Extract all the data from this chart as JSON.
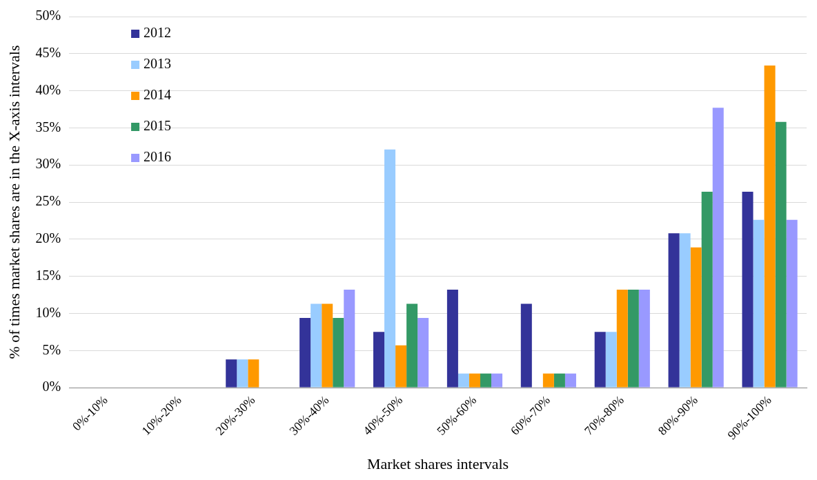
{
  "chart_data": {
    "type": "bar",
    "xlabel": "Market shares intervals",
    "ylabel": "% of times market shares are in the X-axis intervals",
    "categories": [
      "0%-10%",
      "10%-20%",
      "20%-30%",
      "30%-40%",
      "40%-50%",
      "50%-60%",
      "60%-70%",
      "70%-80%",
      "80%-90%",
      "90%-100%"
    ],
    "series": [
      {
        "name": "2012",
        "color": "#333399",
        "values": [
          0,
          0,
          3.8,
          9.4,
          7.5,
          13.2,
          11.3,
          7.5,
          20.8,
          26.4
        ]
      },
      {
        "name": "2013",
        "color": "#99ccff",
        "values": [
          0,
          0,
          3.8,
          11.3,
          32.1,
          1.9,
          0,
          7.5,
          20.8,
          22.6
        ]
      },
      {
        "name": "2014",
        "color": "#ff9900",
        "values": [
          0,
          0,
          3.8,
          11.3,
          5.7,
          1.9,
          1.9,
          13.2,
          18.9,
          43.4
        ]
      },
      {
        "name": "2015",
        "color": "#339966",
        "values": [
          0,
          0,
          0,
          9.4,
          11.3,
          1.9,
          1.9,
          13.2,
          26.4,
          35.8
        ]
      },
      {
        "name": "2016",
        "color": "#9999ff",
        "values": [
          0,
          0,
          0,
          13.2,
          9.4,
          1.9,
          1.9,
          13.2,
          37.7,
          22.6
        ]
      }
    ],
    "ylim": [
      0,
      50
    ],
    "yticks": [
      {
        "value": 0,
        "label": "0%"
      },
      {
        "value": 5,
        "label": "5%"
      },
      {
        "value": 10,
        "label": "10%"
      },
      {
        "value": 15,
        "label": "15%"
      },
      {
        "value": 20,
        "label": "20%"
      },
      {
        "value": 25,
        "label": "25%"
      },
      {
        "value": 30,
        "label": "30%"
      },
      {
        "value": 35,
        "label": "35%"
      },
      {
        "value": 40,
        "label": "40%"
      },
      {
        "value": 45,
        "label": "45%"
      },
      {
        "value": 50,
        "label": "50%"
      }
    ],
    "grid": "y",
    "legend": "top left"
  }
}
